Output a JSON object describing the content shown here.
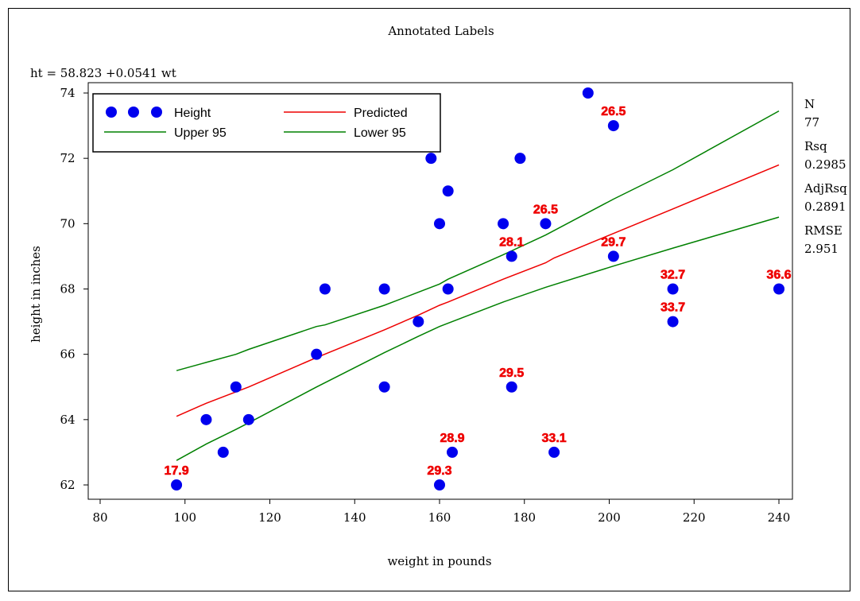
{
  "chart_data": {
    "type": "scatter",
    "title": "Annotated Labels",
    "equation": "ht = 58.823 +0.0541 wt",
    "xlabel": "weight in pounds",
    "ylabel": "height in inches",
    "xlim": [
      80,
      240
    ],
    "ylim": [
      62,
      74
    ],
    "x_ticks": [
      "80",
      "100",
      "120",
      "140",
      "160",
      "180",
      "200",
      "220",
      "240"
    ],
    "y_ticks": [
      "62",
      "64",
      "66",
      "68",
      "70",
      "72",
      "74"
    ],
    "grid": false,
    "legend_placement": "top-left",
    "legend": [
      {
        "label": "Height",
        "kind": "marker",
        "color": "#0000ee"
      },
      {
        "label": "Predicted",
        "kind": "line",
        "color": "#ee0000"
      },
      {
        "label": "Upper 95",
        "kind": "line",
        "color": "#008000"
      },
      {
        "label": "Lower 95",
        "kind": "line",
        "color": "#008000"
      }
    ],
    "points": [
      {
        "x": 98,
        "y": 62,
        "label": "17.9"
      },
      {
        "x": 105,
        "y": 64,
        "label": ""
      },
      {
        "x": 109,
        "y": 63,
        "label": ""
      },
      {
        "x": 112,
        "y": 65,
        "label": ""
      },
      {
        "x": 115,
        "y": 64,
        "label": ""
      },
      {
        "x": 131,
        "y": 66,
        "label": ""
      },
      {
        "x": 133,
        "y": 68,
        "label": ""
      },
      {
        "x": 147,
        "y": 68,
        "label": ""
      },
      {
        "x": 147,
        "y": 65,
        "label": ""
      },
      {
        "x": 155,
        "y": 67,
        "label": ""
      },
      {
        "x": 158,
        "y": 72,
        "label": ""
      },
      {
        "x": 160,
        "y": 70,
        "label": ""
      },
      {
        "x": 160,
        "y": 62,
        "label": "29.3"
      },
      {
        "x": 162,
        "y": 71,
        "label": ""
      },
      {
        "x": 162,
        "y": 68,
        "label": ""
      },
      {
        "x": 163,
        "y": 63,
        "label": "28.9"
      },
      {
        "x": 175,
        "y": 70,
        "label": ""
      },
      {
        "x": 177,
        "y": 69,
        "label": "28.1"
      },
      {
        "x": 177,
        "y": 65,
        "label": "29.5"
      },
      {
        "x": 179,
        "y": 72,
        "label": ""
      },
      {
        "x": 185,
        "y": 70,
        "label": "26.5"
      },
      {
        "x": 187,
        "y": 63,
        "label": "33.1"
      },
      {
        "x": 195,
        "y": 74,
        "label": ""
      },
      {
        "x": 201,
        "y": 73,
        "label": "26.5"
      },
      {
        "x": 201,
        "y": 69,
        "label": "29.7"
      },
      {
        "x": 215,
        "y": 68,
        "label": "32.7"
      },
      {
        "x": 215,
        "y": 67,
        "label": "33.7"
      },
      {
        "x": 240,
        "y": 68,
        "label": "36.6"
      }
    ],
    "series": [
      {
        "name": "Predicted",
        "color": "#ee0000",
        "x": [
          98,
          105,
          112,
          115,
          131,
          147,
          155,
          160,
          162,
          175,
          185,
          187,
          201,
          215,
          240
        ],
        "y": [
          64.1,
          64.5,
          64.85,
          65.0,
          65.9,
          66.75,
          67.2,
          67.5,
          67.6,
          68.3,
          68.8,
          68.95,
          69.7,
          70.45,
          71.8
        ]
      },
      {
        "name": "Upper 95",
        "color": "#008000",
        "x": [
          98,
          105,
          112,
          115,
          131,
          133,
          147,
          155,
          160,
          162,
          175,
          185,
          201,
          215,
          240
        ],
        "y": [
          65.5,
          65.75,
          66.0,
          66.15,
          66.85,
          66.9,
          67.5,
          67.9,
          68.15,
          68.3,
          69.05,
          69.65,
          70.75,
          71.65,
          73.45
        ]
      },
      {
        "name": "Lower 95",
        "color": "#008000",
        "x": [
          98,
          105,
          112,
          115,
          131,
          147,
          155,
          160,
          162,
          175,
          185,
          201,
          215,
          240
        ],
        "y": [
          62.75,
          63.25,
          63.7,
          63.9,
          65.0,
          66.05,
          66.55,
          66.85,
          66.95,
          67.6,
          68.05,
          68.7,
          69.25,
          70.2
        ]
      }
    ],
    "stats": [
      {
        "label": "N",
        "value": "77"
      },
      {
        "label": "Rsq",
        "value": "0.2985"
      },
      {
        "label": "AdjRsq",
        "value": "0.2891"
      },
      {
        "label": "RMSE",
        "value": "2.951"
      }
    ]
  }
}
